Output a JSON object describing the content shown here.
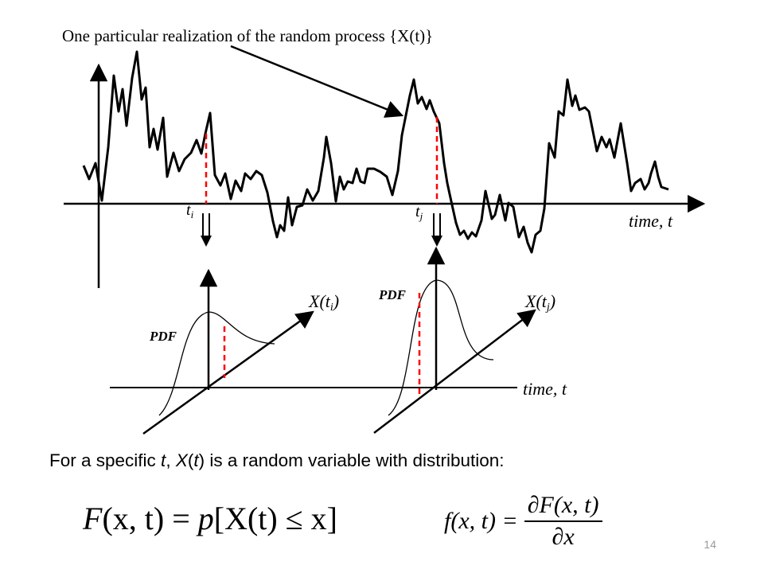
{
  "diagram": {
    "realization_label": "One particular realization of the random process {X(t)}",
    "tick_ti": "t",
    "tick_ti_sub": "i",
    "tick_tj": "t",
    "tick_tj_sub": "j",
    "time_axis_top": "time, t",
    "time_axis_bottom": "time, t",
    "pdf_label_left": "PDF",
    "pdf_label_right": "PDF",
    "axis_label_xti": "X(t",
    "axis_label_xti_sub": "i",
    "axis_label_xti_close": ")",
    "axis_label_xtj": "X(t",
    "axis_label_xtj_sub": "j",
    "axis_label_xtj_close": ")"
  },
  "caption": {
    "prefix": "For a specific ",
    "t1": "t",
    "comma": ", ",
    "X": "X",
    "paren_open": "(",
    "t2": "t",
    "suffix": ") is a random variable with distribution:"
  },
  "equations": {
    "cdf_F": "F",
    "cdf_args": "(x, t)",
    "cdf_eq": " = ",
    "cdf_p": "p",
    "cdf_bracket": "[X(t) ≤ x]",
    "pdf_lhs": "f(x, t) =",
    "pdf_num": "∂F(x, t)",
    "pdf_den": "∂x"
  },
  "page_number": "14",
  "colors": {
    "ink": "#000000",
    "marker": "#ff0000",
    "page_number": "#999999"
  }
}
